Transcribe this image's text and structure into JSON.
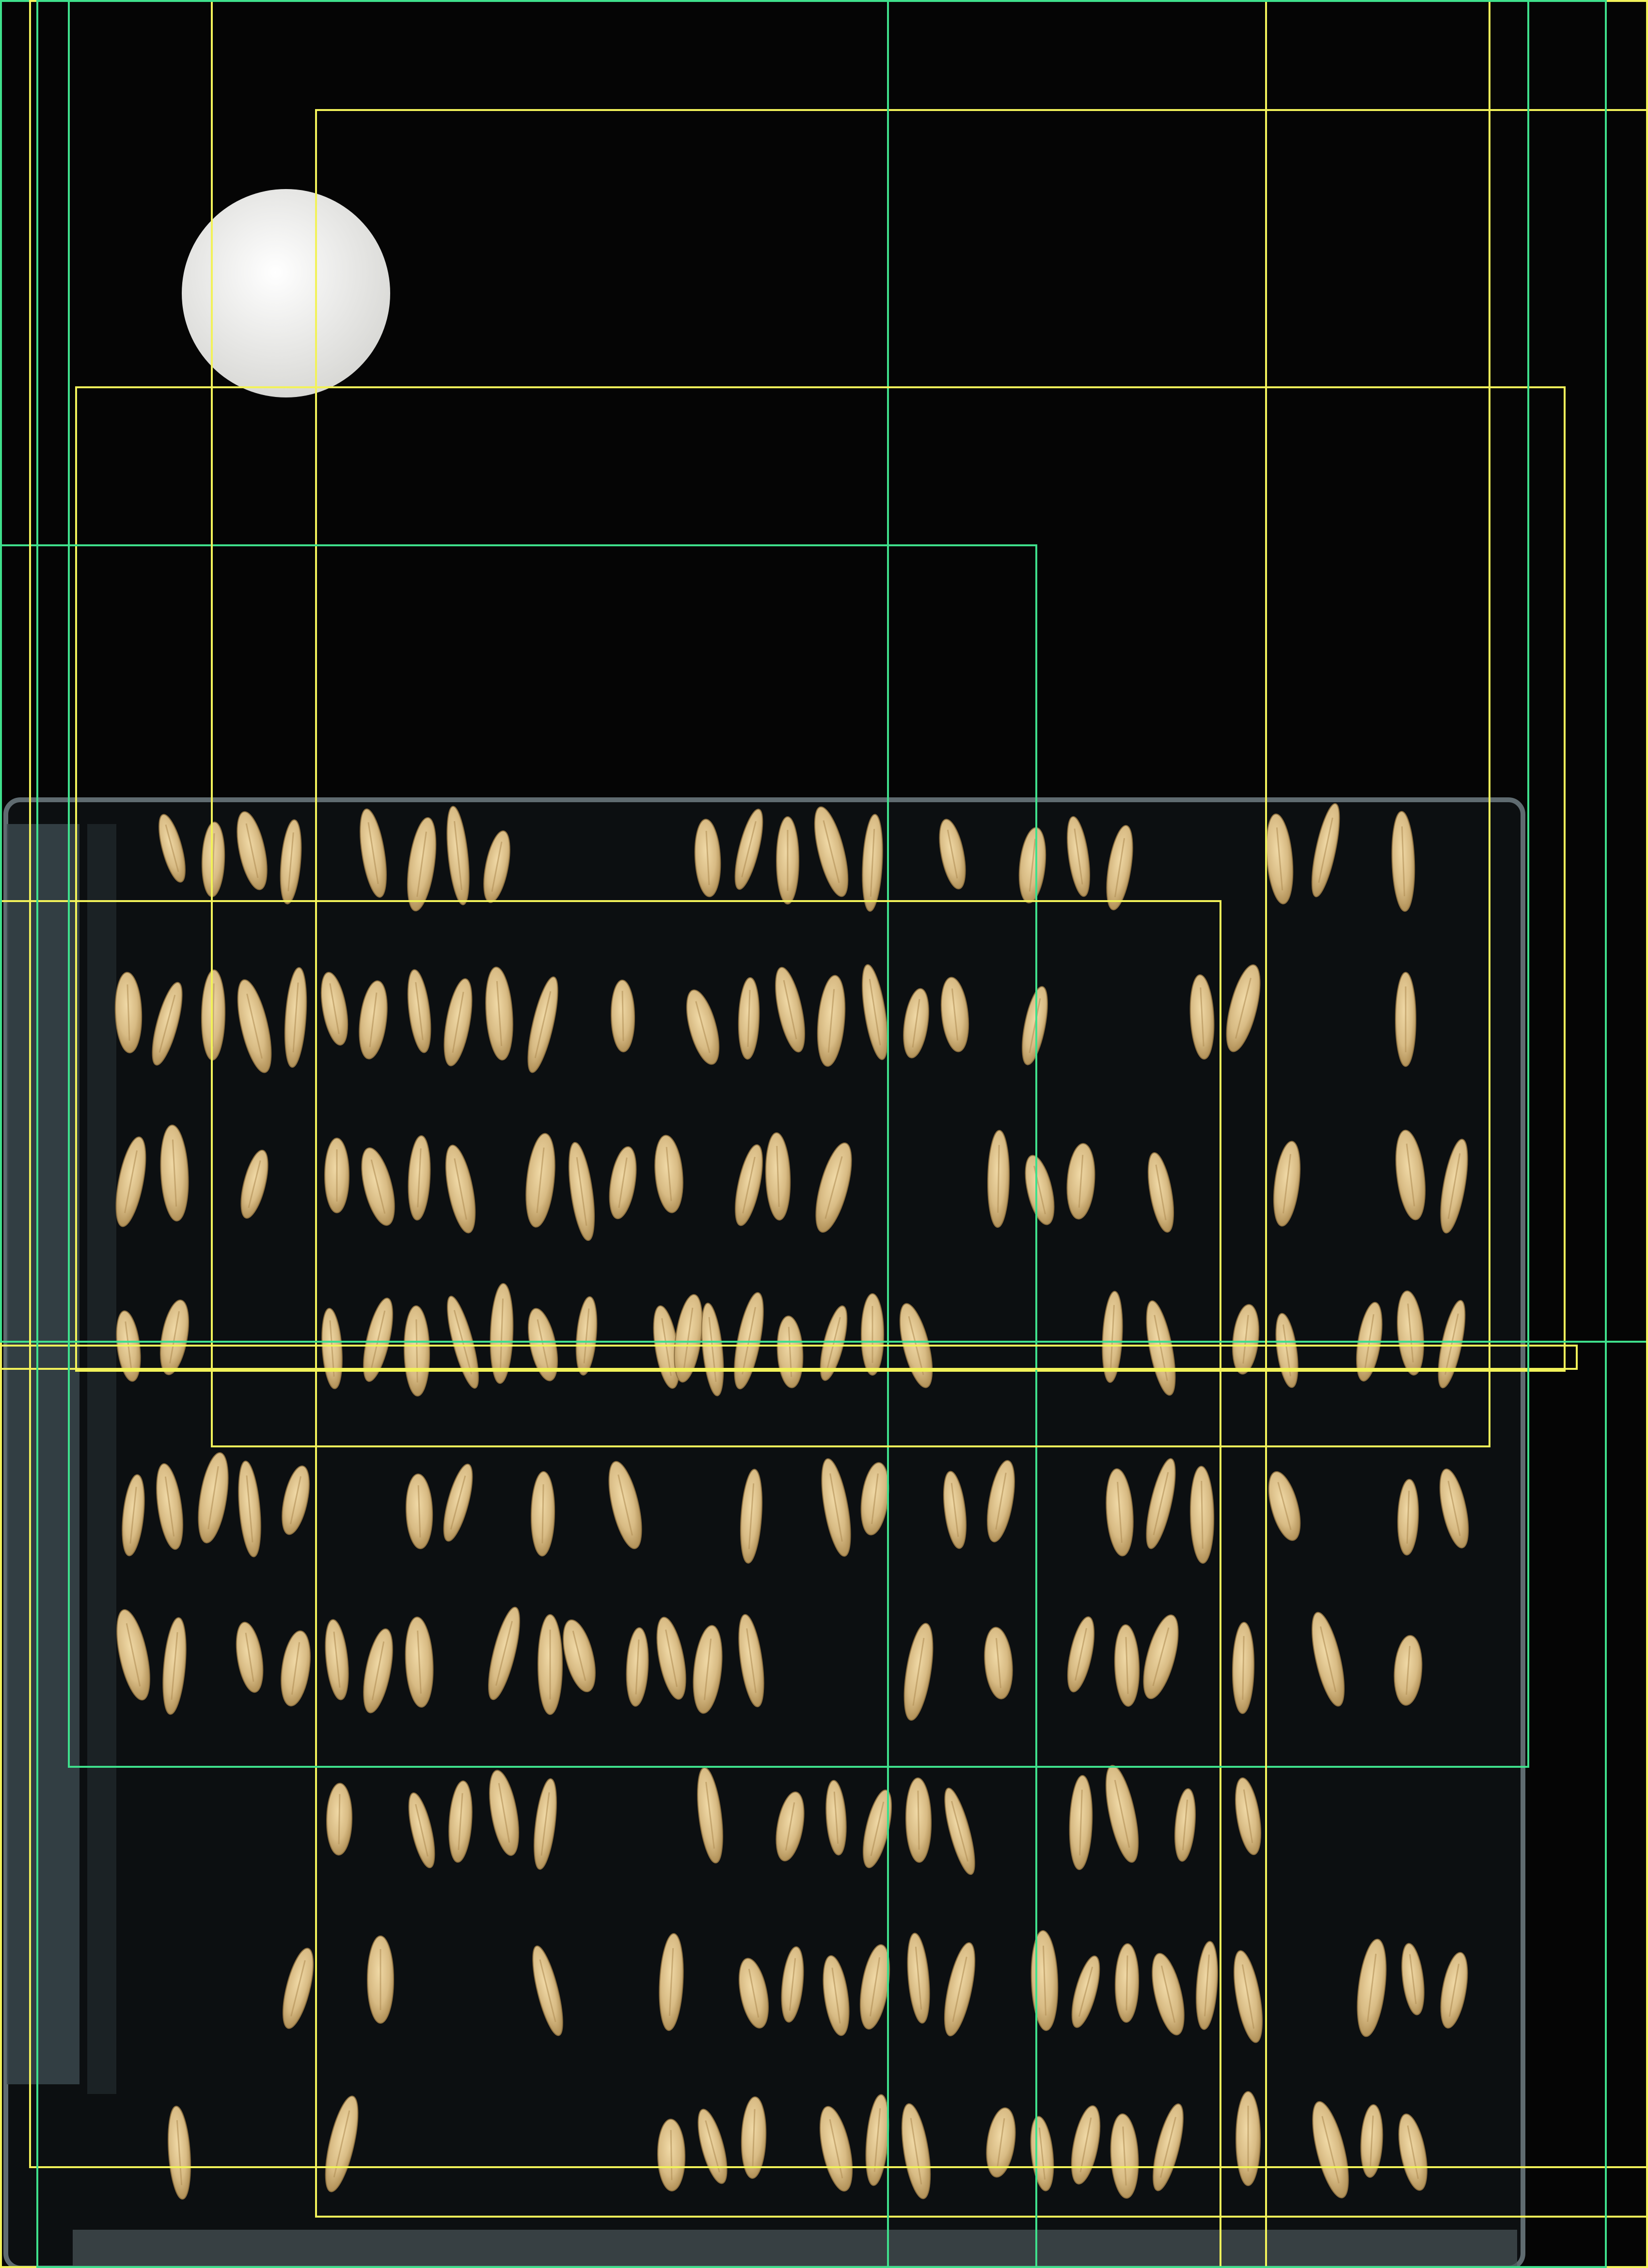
{
  "image": {
    "subject": "",
    "background_color": "#050505",
    "tray_color": "#0c0f11",
    "tray_edge_color": "#5f6b70",
    "disc_color": "#eeeeec",
    "grain_color": "#d8bb84",
    "grain_shadow_color": "#a8874e"
  },
  "overlay": {
    "colors": {
      "yellow": "#f2f25a",
      "green": "#3fe08c"
    },
    "boxes": [
      {
        "id": "box-a",
        "color": "yellow",
        "label": ""
      },
      {
        "id": "box-b",
        "color": "yellow",
        "label": ""
      },
      {
        "id": "box-c",
        "color": "green",
        "label": ""
      },
      {
        "id": "box-d",
        "color": "yellow",
        "label": ""
      },
      {
        "id": "box-e",
        "color": "green",
        "label": ""
      },
      {
        "id": "box-f",
        "color": "yellow",
        "label": ""
      },
      {
        "id": "box-g",
        "color": "yellow",
        "label": ""
      },
      {
        "id": "box-h",
        "color": "green",
        "label": ""
      },
      {
        "id": "box-i",
        "color": "yellow",
        "label": ""
      },
      {
        "id": "box-j",
        "color": "green",
        "label": ""
      },
      {
        "id": "box-k",
        "color": "yellow",
        "label": ""
      },
      {
        "id": "box-l",
        "color": "yellow",
        "label": ""
      },
      {
        "id": "box-m",
        "color": "green",
        "label": ""
      }
    ]
  }
}
